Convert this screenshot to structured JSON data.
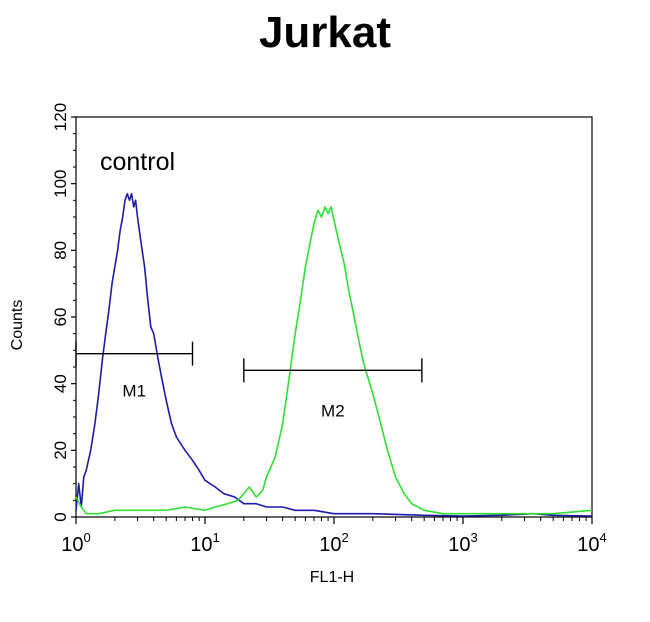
{
  "chart_data": {
    "type": "line",
    "title": "Jurkat",
    "xlabel": "FL1-H",
    "ylabel": "Counts",
    "xscale": "log",
    "xlim": [
      1,
      10000
    ],
    "ylim": [
      0,
      120
    ],
    "x_ticks": [
      {
        "value": 1,
        "base": "10",
        "exp": "0"
      },
      {
        "value": 10,
        "base": "10",
        "exp": "1"
      },
      {
        "value": 100,
        "base": "10",
        "exp": "2"
      },
      {
        "value": 1000,
        "base": "10",
        "exp": "3"
      },
      {
        "value": 10000,
        "base": "10",
        "exp": "4"
      }
    ],
    "y_ticks": [
      "0",
      "20",
      "40",
      "60",
      "80",
      "100",
      "120"
    ],
    "grid": false,
    "annotations": [
      {
        "text": "control"
      }
    ],
    "markers": [
      {
        "label": "M1",
        "x_start": 1,
        "x_end": 8,
        "y": 49,
        "label_y": 38
      },
      {
        "label": "M2",
        "x_start": 20,
        "x_end": 480,
        "y": 44,
        "label_y": 32
      }
    ],
    "series": [
      {
        "color": "#1c1ca8",
        "points": [
          [
            1.0,
            2
          ],
          [
            1.05,
            10
          ],
          [
            1.1,
            3
          ],
          [
            1.15,
            12
          ],
          [
            1.2,
            14
          ],
          [
            1.3,
            20
          ],
          [
            1.4,
            28
          ],
          [
            1.5,
            37
          ],
          [
            1.6,
            47
          ],
          [
            1.7,
            55
          ],
          [
            1.8,
            62
          ],
          [
            1.9,
            70
          ],
          [
            2.0,
            75
          ],
          [
            2.1,
            80
          ],
          [
            2.2,
            86
          ],
          [
            2.3,
            90
          ],
          [
            2.4,
            95
          ],
          [
            2.5,
            97
          ],
          [
            2.6,
            95
          ],
          [
            2.7,
            97
          ],
          [
            2.8,
            93
          ],
          [
            2.9,
            95
          ],
          [
            3.0,
            90
          ],
          [
            3.2,
            82
          ],
          [
            3.4,
            75
          ],
          [
            3.6,
            65
          ],
          [
            3.8,
            57
          ],
          [
            4.0,
            55
          ],
          [
            4.3,
            48
          ],
          [
            4.6,
            42
          ],
          [
            5.0,
            35
          ],
          [
            5.5,
            28
          ],
          [
            6.0,
            24
          ],
          [
            7.0,
            20
          ],
          [
            8.0,
            17
          ],
          [
            9.0,
            14
          ],
          [
            10.0,
            11
          ],
          [
            12.0,
            9
          ],
          [
            14.0,
            7
          ],
          [
            17.0,
            6
          ],
          [
            20.0,
            4
          ],
          [
            25.0,
            4
          ],
          [
            30.0,
            3
          ],
          [
            40.0,
            3
          ],
          [
            50.0,
            2
          ],
          [
            70.0,
            2
          ],
          [
            100.0,
            1
          ],
          [
            200.0,
            1
          ],
          [
            500.0,
            0.5
          ],
          [
            1000.0,
            0.3
          ],
          [
            2000.0,
            0.5
          ],
          [
            3500.0,
            1
          ],
          [
            5000.0,
            0.5
          ],
          [
            10000.0,
            0.3
          ]
        ]
      },
      {
        "color": "#33dd33",
        "points": [
          [
            1.0,
            6
          ],
          [
            1.1,
            3
          ],
          [
            1.2,
            1
          ],
          [
            1.5,
            1
          ],
          [
            2.0,
            2
          ],
          [
            3.0,
            2
          ],
          [
            4.0,
            2
          ],
          [
            5.0,
            2
          ],
          [
            7.0,
            3
          ],
          [
            10.0,
            2
          ],
          [
            12.0,
            3
          ],
          [
            15.0,
            4
          ],
          [
            18.0,
            5
          ],
          [
            20.0,
            7
          ],
          [
            22.0,
            9
          ],
          [
            25.0,
            6
          ],
          [
            28.0,
            8
          ],
          [
            30.0,
            12
          ],
          [
            35.0,
            18
          ],
          [
            40.0,
            28
          ],
          [
            45.0,
            42
          ],
          [
            50.0,
            55
          ],
          [
            55.0,
            65
          ],
          [
            60.0,
            75
          ],
          [
            65.0,
            82
          ],
          [
            70.0,
            88
          ],
          [
            75.0,
            92
          ],
          [
            80.0,
            90
          ],
          [
            85.0,
            93
          ],
          [
            90.0,
            91
          ],
          [
            95.0,
            93
          ],
          [
            100.0,
            89
          ],
          [
            110.0,
            82
          ],
          [
            120.0,
            76
          ],
          [
            130.0,
            68
          ],
          [
            140.0,
            62
          ],
          [
            150.0,
            56
          ],
          [
            170.0,
            46
          ],
          [
            200.0,
            37
          ],
          [
            230.0,
            28
          ],
          [
            260.0,
            20
          ],
          [
            300.0,
            12
          ],
          [
            350.0,
            7
          ],
          [
            400.0,
            4
          ],
          [
            500.0,
            2
          ],
          [
            700.0,
            1
          ],
          [
            1000.0,
            1
          ],
          [
            2000.0,
            1
          ],
          [
            3000.0,
            1
          ],
          [
            5000.0,
            1
          ],
          [
            10000.0,
            2
          ]
        ]
      }
    ]
  }
}
